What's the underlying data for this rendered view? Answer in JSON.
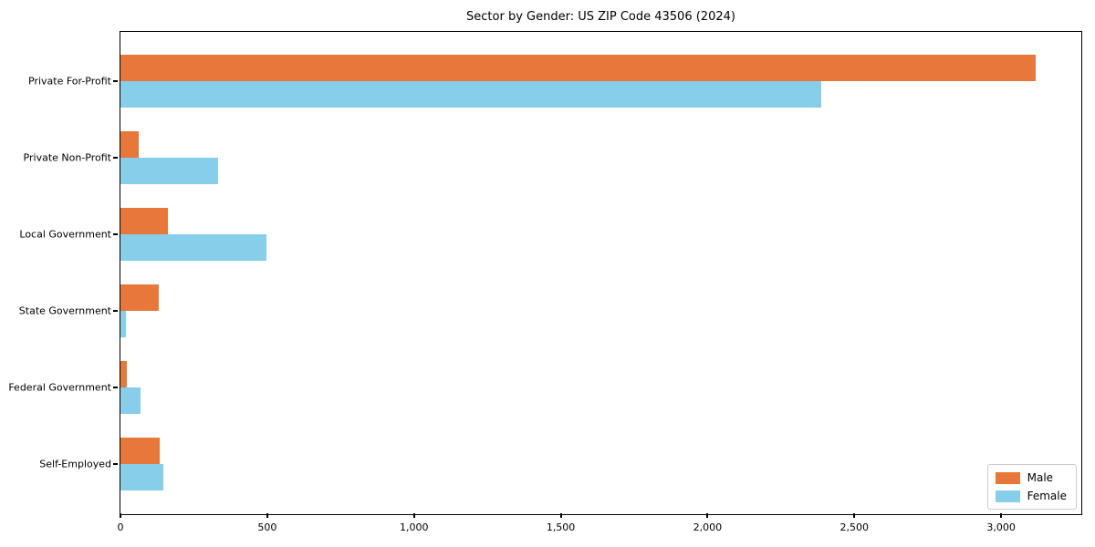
{
  "title": "Sector by Gender: US ZIP Code 43506 (2024)",
  "colors": {
    "male": "#e8773a",
    "female": "#87ceeb",
    "spine": "#000000",
    "legend_border": "#cccccc",
    "background": "#ffffff"
  },
  "legend": {
    "male_label": "Male",
    "female_label": "Female"
  },
  "chart_data": {
    "type": "bar",
    "orientation": "horizontal",
    "title": "Sector by Gender: US ZIP Code 43506 (2024)",
    "categories": [
      "Private For-Profit",
      "Private Non-Profit",
      "Local Government",
      "State Government",
      "Federal Government",
      "Self-Employed"
    ],
    "series": [
      {
        "name": "Male",
        "color": "#e8773a",
        "values": [
          3116,
          63,
          160,
          129,
          21,
          132
        ]
      },
      {
        "name": "Female",
        "color": "#87ceeb",
        "values": [
          2387,
          332,
          497,
          19,
          68,
          145
        ]
      }
    ],
    "xlabel": "",
    "ylabel": "",
    "xlim": [
      0,
      3270
    ],
    "x_ticks": [
      0,
      500,
      1000,
      1500,
      2000,
      2500,
      3000
    ],
    "x_tick_labels": [
      "0",
      "500",
      "1,000",
      "1,500",
      "2,000",
      "2,500",
      "3,000"
    ],
    "grid": false,
    "legend_position": "lower right"
  }
}
